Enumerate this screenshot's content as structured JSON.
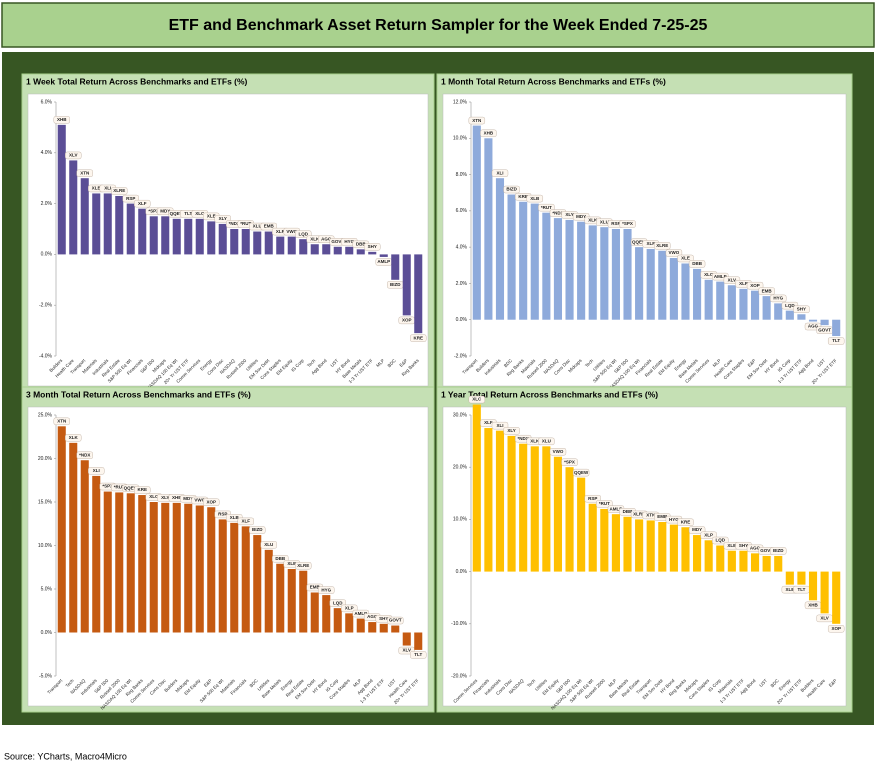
{
  "title": "ETF and Benchmark Asset Return Sampler for the Week Ended 7-25-25",
  "source": "Source: YCharts, Macro4Micro",
  "chart_data": [
    {
      "type": "bar",
      "title": "1 Week Total Return Across Benchmarks and ETFs (%)",
      "color": "#5b4e96",
      "grid": false,
      "labels": [
        "XHB",
        "XLV",
        "XTN",
        "XLB",
        "XLI",
        "XLRE",
        "RSP",
        "XLF",
        "*SPX",
        "MDY",
        "QQEW",
        "TLT",
        "XLC",
        "XLE",
        "XLY",
        "*NDX",
        "*RUT",
        "XLU",
        "EMB",
        "XLP",
        "VWO",
        "LQD",
        "XLK",
        "AGG",
        "GOVT",
        "HYG",
        "DBB",
        "SHY",
        "AMLP",
        "BIZD",
        "XOP",
        "KRE"
      ],
      "categories": [
        "Builders",
        "Health Care",
        "Transport",
        "Materials",
        "Industrials",
        "Real Estate",
        "S&P 500 Eq Wt",
        "Financials",
        "S&P 500",
        "Midcaps",
        "NASDAQ 100 Eq Wt",
        "20+ Yr UST ETF",
        "Comm Services",
        "Energy",
        "Cons Disc",
        "NASDAQ",
        "Russell 2000",
        "Utilities",
        "EM Sov Debt",
        "Cons Staples",
        "EM Equity",
        "IG Corp",
        "Tech",
        "Agg Bond",
        "UST",
        "HY Bond",
        "Base Metals",
        "1-3 Yr UST ETF",
        "MLP",
        "BDC",
        "E&P",
        "Reg Banks"
      ],
      "values": [
        5.1,
        3.7,
        3.0,
        2.4,
        2.4,
        2.3,
        2.0,
        1.8,
        1.5,
        1.5,
        1.4,
        1.4,
        1.4,
        1.3,
        1.2,
        1.0,
        1.0,
        0.9,
        0.9,
        0.7,
        0.7,
        0.6,
        0.4,
        0.4,
        0.3,
        0.3,
        0.2,
        0.1,
        -0.1,
        -1.0,
        -2.4,
        -3.1
      ],
      "ylim": [
        -4,
        6
      ],
      "yticks": [
        {
          "value": 6,
          "label": "6.0%"
        },
        {
          "value": 4,
          "label": "4.0%"
        },
        {
          "value": 2,
          "label": "2.0%"
        },
        {
          "value": 0,
          "label": "0.0%"
        },
        {
          "value": -2,
          "label": "-2.0%"
        },
        {
          "value": -4,
          "label": "-4.0%"
        }
      ]
    },
    {
      "type": "bar",
      "title": "1 Month Total Return Across Benchmarks and ETFs (%)",
      "color": "#8eaadb",
      "grid": false,
      "labels": [
        "XTN",
        "XHB",
        "XLI",
        "BIZD",
        "KRE",
        "XLB",
        "*RUT",
        "*NDX",
        "XLY",
        "MDY",
        "XLK",
        "XLU",
        "RSP",
        "*SPX",
        "QQEW",
        "XLF",
        "XLRE",
        "VWO",
        "XLE",
        "DBB",
        "XLC",
        "AMLP",
        "XLV",
        "XLP",
        "XOP",
        "EMB",
        "HYG",
        "LQD",
        "SHY",
        "AGG",
        "GOVT",
        "TLT"
      ],
      "categories": [
        "Transport",
        "Builders",
        "Industrials",
        "BDC",
        "Reg Banks",
        "Materials",
        "Russell 2000",
        "NASDAQ",
        "Cons Disc",
        "Midcaps",
        "Tech",
        "Utilities",
        "S&P 500 Eq Wt",
        "S&P 500",
        "NASDAQ 100 Eq Wt",
        "Financials",
        "Real Estate",
        "EM Equity",
        "Energy",
        "Base Metals",
        "Comm Services",
        "MLP",
        "Health Care",
        "Cons Staples",
        "E&P",
        "EM Sov Debt",
        "HY Bond",
        "IG Corp",
        "1-3 Yr UST ETF",
        "Agg Bond",
        "UST",
        "20+ Yr UST ETF"
      ],
      "values": [
        10.7,
        10.0,
        7.8,
        6.9,
        6.5,
        6.4,
        5.9,
        5.6,
        5.5,
        5.4,
        5.2,
        5.1,
        5.0,
        5.0,
        4.0,
        3.9,
        3.8,
        3.4,
        3.1,
        2.8,
        2.2,
        2.1,
        1.9,
        1.7,
        1.6,
        1.3,
        0.9,
        0.5,
        0.3,
        -0.1,
        -0.3,
        -0.9
      ],
      "ylim": [
        -2,
        12
      ],
      "yticks": [
        {
          "value": 12,
          "label": "12.0%"
        },
        {
          "value": 10,
          "label": "10.0%"
        },
        {
          "value": 8,
          "label": "8.0%"
        },
        {
          "value": 6,
          "label": "6.0%"
        },
        {
          "value": 4,
          "label": "4.0%"
        },
        {
          "value": 2,
          "label": "2.0%"
        },
        {
          "value": 0,
          "label": "0.0%"
        },
        {
          "value": -2,
          "label": "-2.0%"
        }
      ]
    },
    {
      "type": "bar",
      "title": "3 Month Total Return Across Benchmarks and ETFs (%)",
      "color": "#c55a11",
      "grid": false,
      "labels": [
        "XTN",
        "XLK",
        "*NDX",
        "XLI",
        "*SPX",
        "*RUT",
        "QQEW",
        "KRE",
        "XLC",
        "XLY",
        "XHB",
        "MDY",
        "VWO",
        "XOP",
        "RSP",
        "XLB",
        "XLF",
        "BIZD",
        "XLU",
        "DBB",
        "XLE",
        "XLRE",
        "EMB",
        "HYG",
        "LQD",
        "XLP",
        "AMLP",
        "AGG",
        "SHY",
        "GOVT",
        "XLV",
        "TLT"
      ],
      "categories": [
        "Transport",
        "Tech",
        "NASDAQ",
        "Industrials",
        "S&P 500",
        "Russell 2000",
        "NASDAQ 100 Eq Wt",
        "Reg Banks",
        "Comm Services",
        "Cons Disc",
        "Builders",
        "Midcaps",
        "EM Equity",
        "E&P",
        "S&P 500 Eq Wt",
        "Materials",
        "Financials",
        "BDC",
        "Utilities",
        "Base Metals",
        "Energy",
        "Real Estate",
        "EM Sov Debt",
        "HY Bond",
        "IG Corp",
        "Cons Staples",
        "MLP",
        "Agg Bond",
        "1-3 Yr UST ETF",
        "UST",
        "Health Care",
        "20+ Yr UST ETF"
      ],
      "values": [
        23.7,
        21.8,
        19.8,
        18.0,
        16.2,
        16.1,
        16.0,
        15.8,
        15.0,
        14.9,
        14.9,
        14.8,
        14.6,
        14.4,
        13.0,
        12.6,
        12.2,
        11.2,
        9.5,
        7.9,
        7.3,
        7.1,
        4.6,
        4.3,
        2.8,
        2.2,
        1.6,
        1.2,
        1.0,
        0.8,
        -1.5,
        -2.0
      ],
      "ylim": [
        -5,
        25
      ],
      "yticks": [
        {
          "value": 25,
          "label": "25.0%"
        },
        {
          "value": 20,
          "label": "20.0%"
        },
        {
          "value": 15,
          "label": "15.0%"
        },
        {
          "value": 10,
          "label": "10.0%"
        },
        {
          "value": 5,
          "label": "5.0%"
        },
        {
          "value": 0,
          "label": "0.0%"
        },
        {
          "value": -5,
          "label": "-5.0%"
        }
      ]
    },
    {
      "type": "bar",
      "title": "1 Year Total Return Across Benchmarks and ETFs (%)",
      "color": "#ffc000",
      "grid": false,
      "labels": [
        "XLC",
        "XLF",
        "XLI",
        "XLY",
        "*NDX",
        "XLK",
        "XLU",
        "VWO",
        "*SPX",
        "QQEW",
        "RSP",
        "*RUT",
        "AMLP",
        "DBB",
        "XLRE",
        "XTN",
        "EMB",
        "HYG",
        "KRE",
        "MDY",
        "XLP",
        "LQD",
        "XLB",
        "SHY",
        "AGG",
        "GOVT",
        "BIZD",
        "XLE",
        "TLT",
        "XHB",
        "XLV",
        "XOP"
      ],
      "categories": [
        "Comm Services",
        "Financials",
        "Industrials",
        "Cons Disc",
        "NASDAQ",
        "Tech",
        "Utilities",
        "EM Equity",
        "S&P 500",
        "NASDAQ 100 Eq Wt",
        "S&P 500 Eq Wt",
        "Russell 2000",
        "MLP",
        "Base Metals",
        "Real Estate",
        "Transport",
        "EM Sov Debt",
        "HY Bond",
        "Reg Banks",
        "Midcaps",
        "Cons Staples",
        "IG Corp",
        "Materials",
        "1-3 Yr UST ETF",
        "Agg Bond",
        "UST",
        "BDC",
        "Energy",
        "20+ Yr UST ETF",
        "Builders",
        "Health Care",
        "E&P"
      ],
      "values": [
        32,
        27.5,
        27,
        26,
        24.5,
        24,
        24,
        22,
        20,
        18,
        13,
        12,
        11,
        10.5,
        10,
        9.8,
        9.5,
        9,
        8.5,
        7,
        6,
        5,
        4,
        4,
        3.5,
        3,
        3,
        -2.5,
        -2.5,
        -5.5,
        -8,
        -10
      ],
      "ylim": [
        -20,
        30
      ],
      "yticks": [
        {
          "value": 30,
          "label": "30.0%"
        },
        {
          "value": 20,
          "label": "20.0%"
        },
        {
          "value": 10,
          "label": "10.0%"
        },
        {
          "value": 0,
          "label": "0.0%"
        },
        {
          "value": -10,
          "label": "-10.0%"
        },
        {
          "value": -20,
          "label": "-20.0%"
        }
      ]
    }
  ]
}
